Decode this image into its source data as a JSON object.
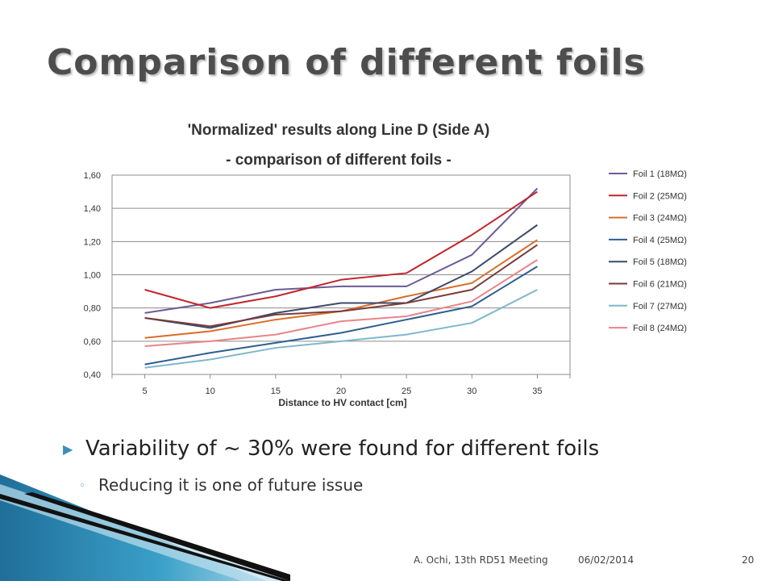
{
  "slide": {
    "title": "Comparison of different foils",
    "bullet": "Variability of ~ 30% were found for different foils",
    "sub_bullet": "Reducing it is one of future issue",
    "footer_author": "A. Ochi, 13th RD51 Meeting",
    "footer_date": "06/02/2014",
    "page_number": "20"
  },
  "colors": {
    "accent": "#3a8fb8"
  },
  "chart_data": {
    "type": "line",
    "title": "'Normalized' results along Line D (Side A)",
    "subtitle": "- comparison of different foils -",
    "xlabel": "Distance to HV contact [cm]",
    "ylabel": "",
    "x": [
      5,
      10,
      15,
      20,
      25,
      30,
      35
    ],
    "x_tick_labels": [
      "5",
      "10",
      "15",
      "20",
      "25",
      "30",
      "35"
    ],
    "ylim": [
      0.4,
      1.6
    ],
    "y_tick_labels": [
      "0,40",
      "0,60",
      "0,80",
      "1,00",
      "1,20",
      "1,40",
      "1,60"
    ],
    "grid": true,
    "legend_position": "right",
    "series": [
      {
        "name": "Foil 1 (18MΩ)",
        "color": "#6b5b95",
        "values": [
          0.77,
          0.83,
          0.91,
          0.93,
          0.93,
          1.12,
          1.52
        ]
      },
      {
        "name": "Foil 2 (25MΩ)",
        "color": "#c0272d",
        "values": [
          0.91,
          0.8,
          0.87,
          0.97,
          1.01,
          1.24,
          1.5
        ]
      },
      {
        "name": "Foil 3 (24MΩ)",
        "color": "#d86f2a",
        "values": [
          0.62,
          0.66,
          0.73,
          0.78,
          0.87,
          0.95,
          1.21
        ]
      },
      {
        "name": "Foil 4 (25MΩ)",
        "color": "#2e5f8f",
        "values": [
          0.46,
          0.53,
          0.59,
          0.65,
          0.73,
          0.81,
          1.05
        ]
      },
      {
        "name": "Foil 5 (18MΩ)",
        "color": "#3c4a6b",
        "values": [
          0.74,
          0.68,
          0.77,
          0.83,
          0.83,
          1.02,
          1.3
        ]
      },
      {
        "name": "Foil 6 (21MΩ)",
        "color": "#7a3b3b",
        "values": [
          0.74,
          0.69,
          0.76,
          0.78,
          0.83,
          0.91,
          1.18
        ]
      },
      {
        "name": "Foil 7 (27MΩ)",
        "color": "#7fb7cc",
        "values": [
          0.44,
          0.49,
          0.56,
          0.6,
          0.64,
          0.71,
          0.91
        ]
      },
      {
        "name": "Foil 8 (24MΩ)",
        "color": "#e8848a",
        "values": [
          0.57,
          0.6,
          0.64,
          0.72,
          0.75,
          0.84,
          1.09
        ]
      }
    ]
  }
}
